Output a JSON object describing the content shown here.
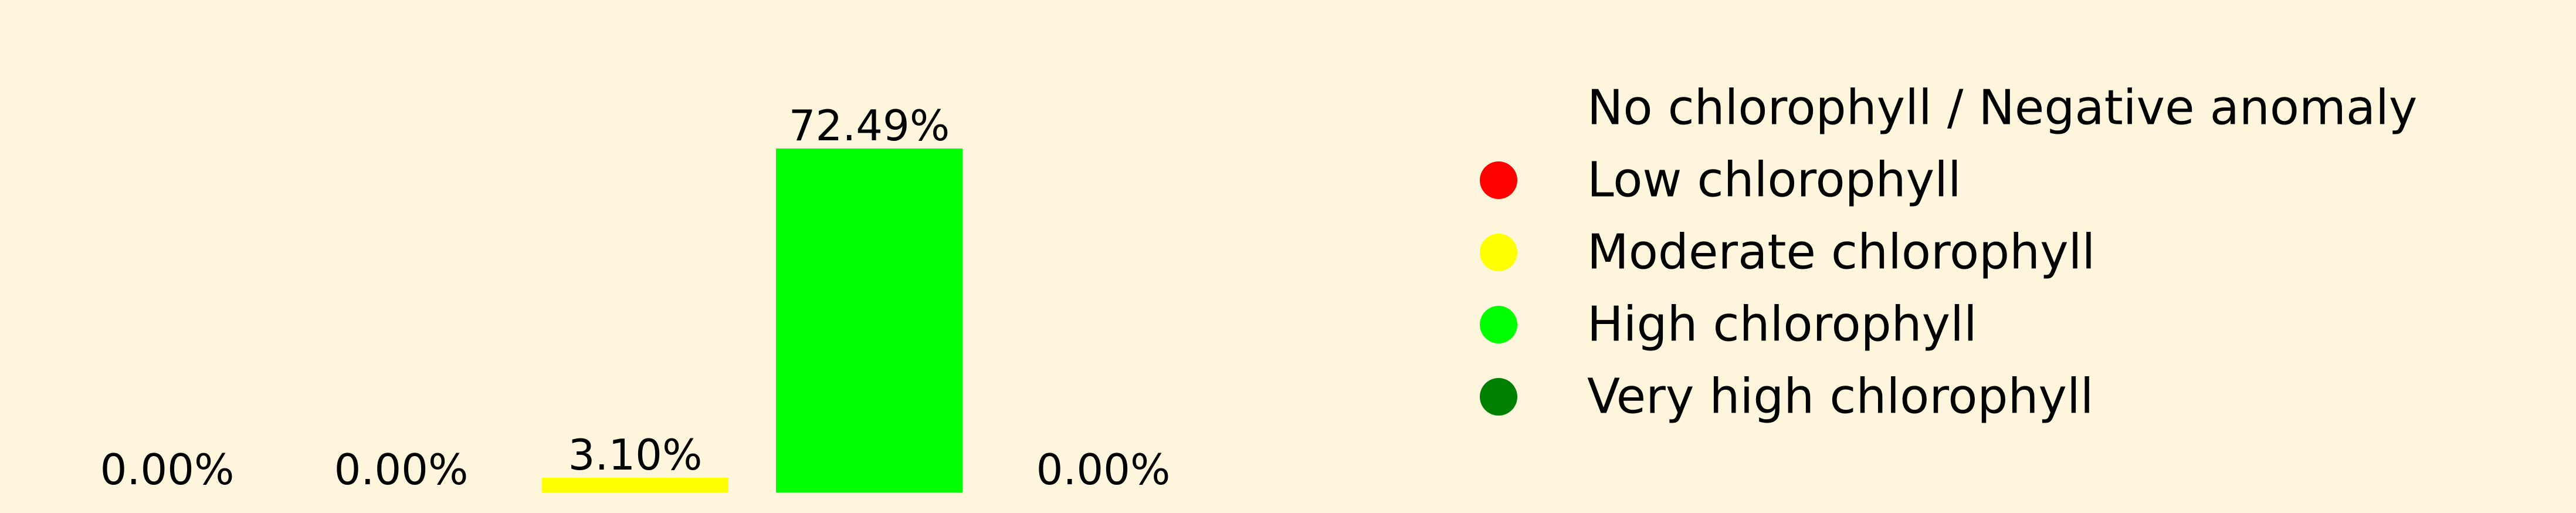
{
  "page": {
    "background": "#fdf6dc"
  },
  "chart_data": {
    "type": "bar",
    "title": "",
    "xlabel": "",
    "ylabel": "",
    "categories": [
      "",
      "",
      "",
      "",
      ""
    ],
    "values": [
      0.0,
      0.0,
      3.1,
      72.49,
      0.0
    ],
    "value_labels": [
      "0.00%",
      "0.00%",
      "3.10%",
      "72.49%",
      "0.00%"
    ],
    "bar_colors": [
      "#d9d9d9",
      "#ff0000",
      "#ffff00",
      "#00ff00",
      "#008000"
    ],
    "ylim": [
      0,
      72.49
    ],
    "grid": false,
    "legend_position": "right",
    "legend": [
      {
        "label": "No chlorophyll / Negative anomaly",
        "color": "#d9d9d9",
        "marker": "none"
      },
      {
        "label": "Low chlorophyll",
        "color": "#ff0000",
        "marker": "circle"
      },
      {
        "label": "Moderate chlorophyll",
        "color": "#ffff00",
        "marker": "circle"
      },
      {
        "label": "High chlorophyll",
        "color": "#00ff00",
        "marker": "circle"
      },
      {
        "label": "Very high chlorophyll",
        "color": "#008000",
        "marker": "circle"
      }
    ]
  }
}
